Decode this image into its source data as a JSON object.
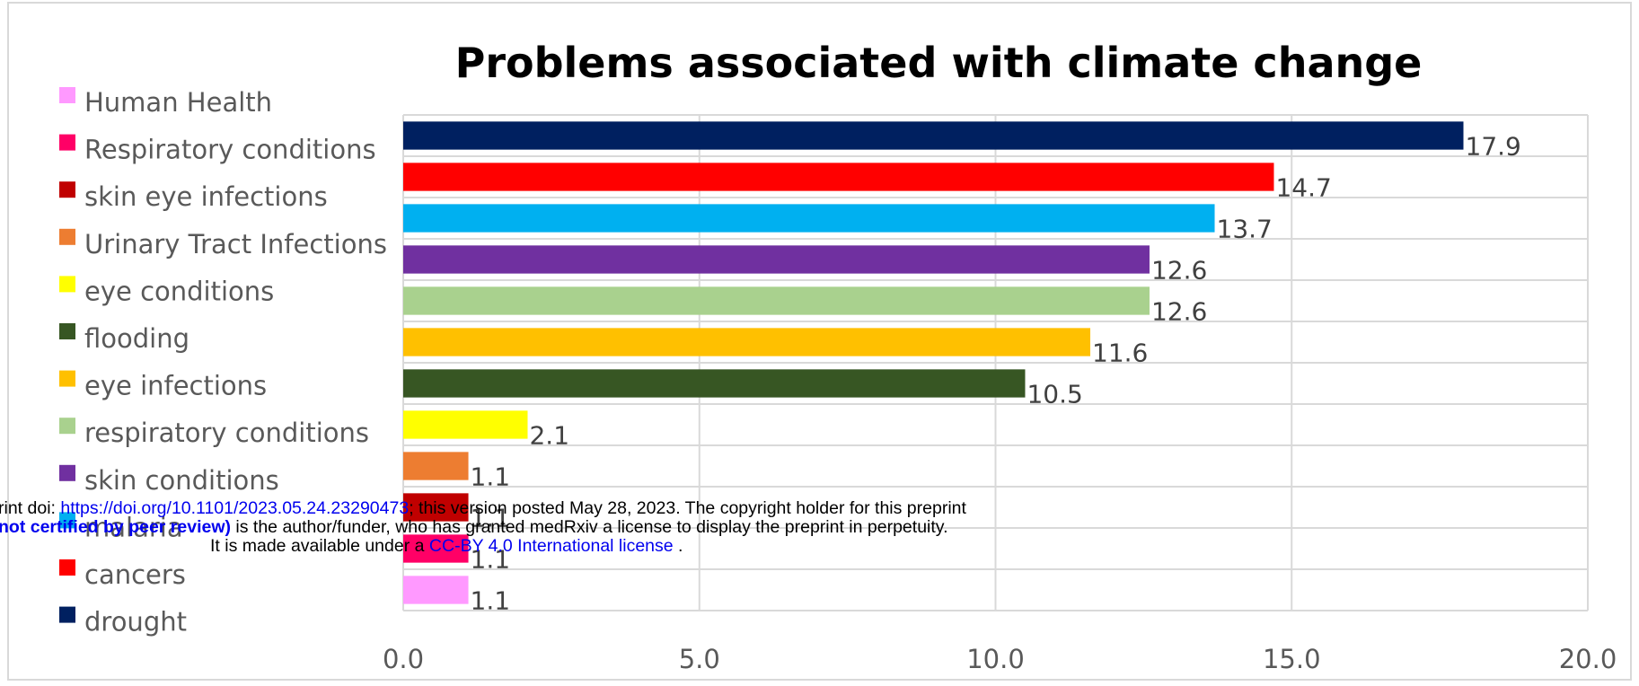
{
  "chart_data": {
    "type": "bar",
    "orientation": "horizontal",
    "title": "Problems associated with climate change",
    "xlabel": "",
    "ylabel": "",
    "xlim": [
      0,
      20
    ],
    "x_ticks": [
      "0.0",
      "5.0",
      "10.0",
      "15.0",
      "20.0"
    ],
    "grid": true,
    "legend_position": "left",
    "categories": [
      "drought",
      "cancers",
      "malaria",
      "skin conditions",
      "respiratory conditions",
      "eye infections",
      "flooding",
      "eye conditions",
      "Urinary Tract Infections",
      "skin eye infections",
      "Respiratory conditions",
      "Human Health"
    ],
    "values": [
      17.9,
      14.7,
      13.7,
      12.6,
      12.6,
      11.6,
      10.5,
      2.1,
      1.1,
      1.1,
      1.1,
      1.1
    ],
    "data_labels": [
      "17.9",
      "14.7",
      "13.7",
      "12.6",
      "12.6",
      "11.6",
      "10.5",
      "2.1",
      "1.1",
      "1.1",
      "1.1",
      "1.1"
    ],
    "colors": [
      "#002060",
      "#ff0000",
      "#00b0f0",
      "#7030a0",
      "#a9d18e",
      "#ffc000",
      "#375623",
      "#ffff00",
      "#ed7d31",
      "#c00000",
      "#ff0066",
      "#ff99ff"
    ],
    "legend": [
      {
        "label": "Human Health",
        "color": "#ff99ff"
      },
      {
        "label": "Respiratory conditions",
        "color": "#ff0066"
      },
      {
        "label": "skin eye infections",
        "color": "#c00000"
      },
      {
        "label": "Urinary Tract Infections",
        "color": "#ed7d31"
      },
      {
        "label": "eye conditions",
        "color": "#ffff00"
      },
      {
        "label": "flooding",
        "color": "#375623"
      },
      {
        "label": "eye infections",
        "color": "#ffc000"
      },
      {
        "label": "respiratory conditions",
        "color": "#a9d18e"
      },
      {
        "label": "skin conditions",
        "color": "#7030a0"
      },
      {
        "label": "malaria",
        "color": "#00b0f0"
      },
      {
        "label": "cancers",
        "color": "#ff0000"
      },
      {
        "label": "drought",
        "color": "#002060"
      }
    ]
  },
  "watermark": {
    "line1_prefix": "rint doi: ",
    "line1_link": "https://doi.org/10.1101/2023.05.24.23290473",
    "line1_suffix": "; this version posted May 28, 2023. The copyright holder for this preprint",
    "line2_bold": "not certified by peer review)",
    "line2_suffix": " is the author/funder, who has granted medRxiv a license to display the preprint in perpetuity.",
    "line3_prefix": "It is made available under a ",
    "line3_link": "CC-BY 4.0 International license",
    "line3_suffix": " ."
  }
}
